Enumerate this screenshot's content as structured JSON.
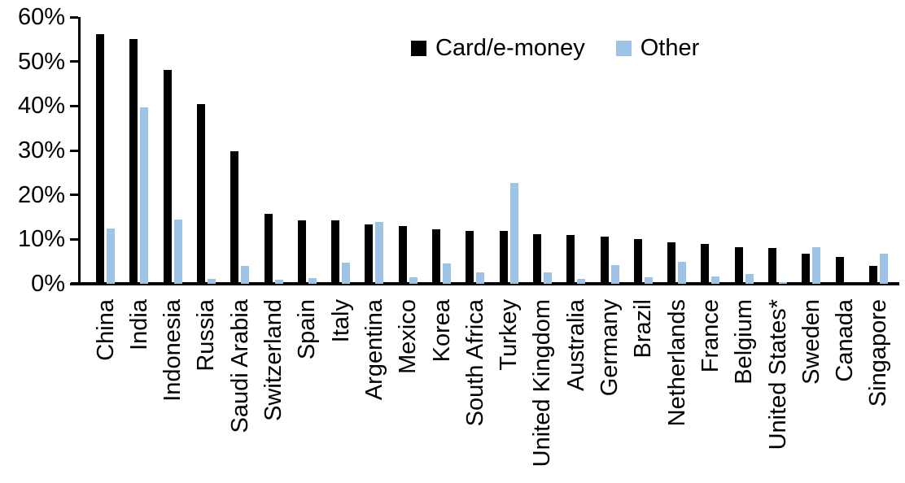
{
  "chart_data": {
    "type": "bar",
    "title": "",
    "xlabel": "",
    "ylabel": "",
    "categories": [
      "China",
      "India",
      "Indonesia",
      "Russia",
      "Saudi Arabia",
      "Switzerland",
      "Spain",
      "Italy",
      "Argentina",
      "Mexico",
      "Korea",
      "South Africa",
      "Turkey",
      "United Kingdom",
      "Australia",
      "Germany",
      "Brazil",
      "Netherlands",
      "France",
      "Belgium",
      "United States*",
      "Sweden",
      "Canada",
      "Singapore"
    ],
    "series": [
      {
        "name": "Card/e-money",
        "color": "#000000",
        "values": [
          56.2,
          55.0,
          48.2,
          40.4,
          29.8,
          15.7,
          14.3,
          14.2,
          13.4,
          13.0,
          12.2,
          11.9,
          11.8,
          11.2,
          10.9,
          10.7,
          10.1,
          9.3,
          8.9,
          8.3,
          8.0,
          6.7,
          6.1,
          4.1
        ]
      },
      {
        "name": "Other",
        "color": "#9DC3E6",
        "values": [
          12.4,
          39.7,
          14.5,
          1.1,
          4.1,
          0.9,
          1.2,
          4.7,
          13.9,
          1.5,
          4.6,
          2.5,
          22.7,
          2.5,
          1.1,
          4.2,
          1.4,
          5.0,
          1.7,
          2.2,
          0.3,
          8.3,
          0.0,
          6.8
        ]
      }
    ],
    "ylim": [
      0,
      60
    ],
    "ytick_step": 10,
    "ytick_labels": [
      "0%",
      "10%",
      "20%",
      "30%",
      "40%",
      "50%",
      "60%"
    ],
    "yaxis_format": "percent",
    "grid": false,
    "legend": {
      "position": "top-inside",
      "entries": [
        "Card/e-money",
        "Other"
      ]
    }
  }
}
